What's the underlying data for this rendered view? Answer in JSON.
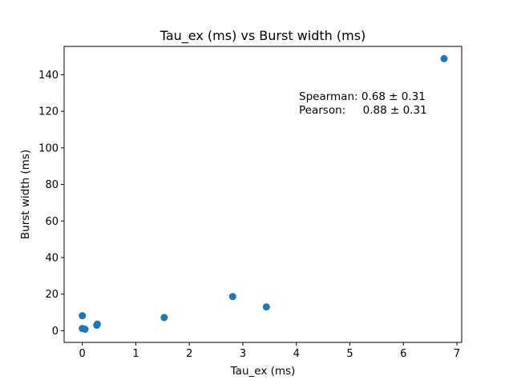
{
  "chart_data": {
    "type": "scatter",
    "title": "Tau_ex (ms) vs Burst width (ms)",
    "xlabel": "Tau_ex (ms)",
    "ylabel": "Burst width (ms)",
    "xlim": [
      -0.34,
      7.09
    ],
    "ylim": [
      -6.4,
      155.5
    ],
    "xticks": [
      0,
      1,
      2,
      3,
      4,
      5,
      6,
      7
    ],
    "yticks": [
      0,
      20,
      40,
      60,
      80,
      100,
      120,
      140
    ],
    "xtick_labels": [
      "0",
      "1",
      "2",
      "3",
      "4",
      "5",
      "6",
      "7"
    ],
    "ytick_labels": [
      "0",
      "20",
      "40",
      "60",
      "80",
      "100",
      "120",
      "140"
    ],
    "grid": false,
    "color": "#1f77b4",
    "points": [
      {
        "x": 0.0,
        "y": 8.2
      },
      {
        "x": 0.0,
        "y": 1.2
      },
      {
        "x": 0.05,
        "y": 0.8
      },
      {
        "x": 0.27,
        "y": 3.0
      },
      {
        "x": 0.28,
        "y": 3.6
      },
      {
        "x": 1.53,
        "y": 7.2
      },
      {
        "x": 2.81,
        "y": 18.7
      },
      {
        "x": 3.44,
        "y": 13.0
      },
      {
        "x": 6.76,
        "y": 148.8
      }
    ],
    "annotations": [
      "Spearman: 0.68 ± 0.31",
      "Pearson:     0.88 ± 0.31"
    ]
  }
}
